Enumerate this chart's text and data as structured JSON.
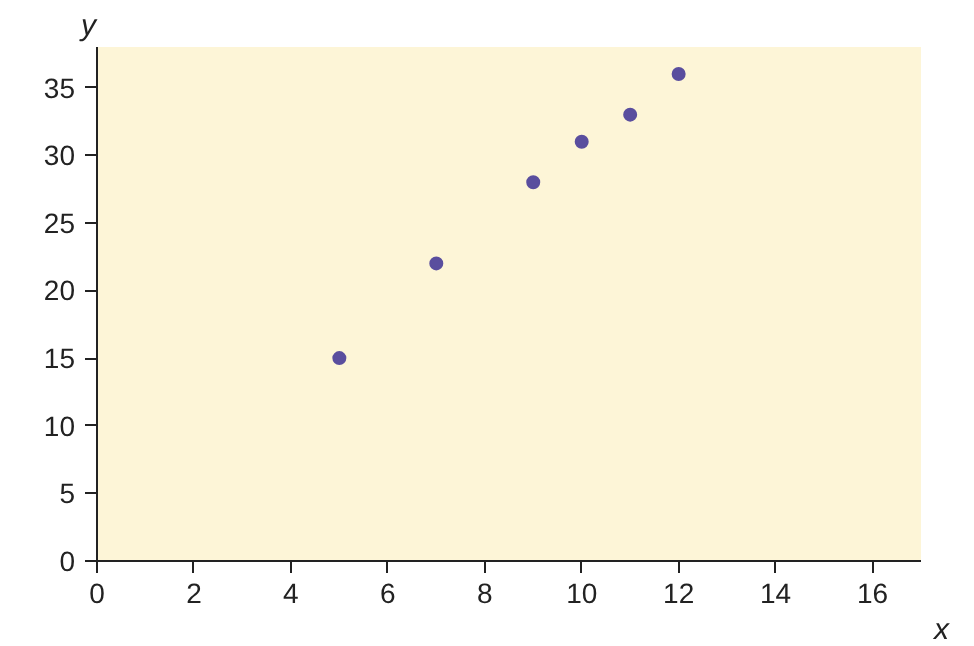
{
  "chart_data": {
    "type": "scatter",
    "xlabel": "x",
    "ylabel": "y",
    "x": [
      5,
      7,
      9,
      10,
      11,
      12
    ],
    "values": [
      15,
      22,
      28,
      31,
      33,
      36
    ],
    "color": "#5a4e9e",
    "marker": "circle",
    "xlim": [
      0,
      17
    ],
    "ylim": [
      0,
      38
    ],
    "xticks": [
      0,
      2,
      4,
      6,
      8,
      10,
      12,
      14,
      16
    ],
    "yticks": [
      0,
      5,
      10,
      15,
      20,
      25,
      30,
      35
    ],
    "grid": false
  }
}
